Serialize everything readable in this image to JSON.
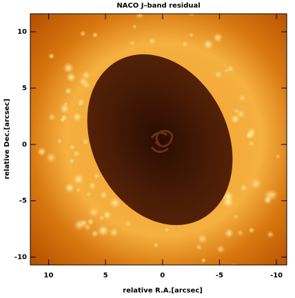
{
  "chart_data": {
    "type": "image",
    "title": "NACO J–band residual",
    "xlabel": "relative R.A.[arcsec]",
    "ylabel": "relative Dec.[arcsec]",
    "xlim": [
      11.6,
      -10.9
    ],
    "ylim": [
      -10.7,
      11.6
    ],
    "xticks": [
      10,
      5,
      0,
      -5,
      -10
    ],
    "yticks": [
      -10,
      -5,
      0,
      5,
      10
    ]
  }
}
